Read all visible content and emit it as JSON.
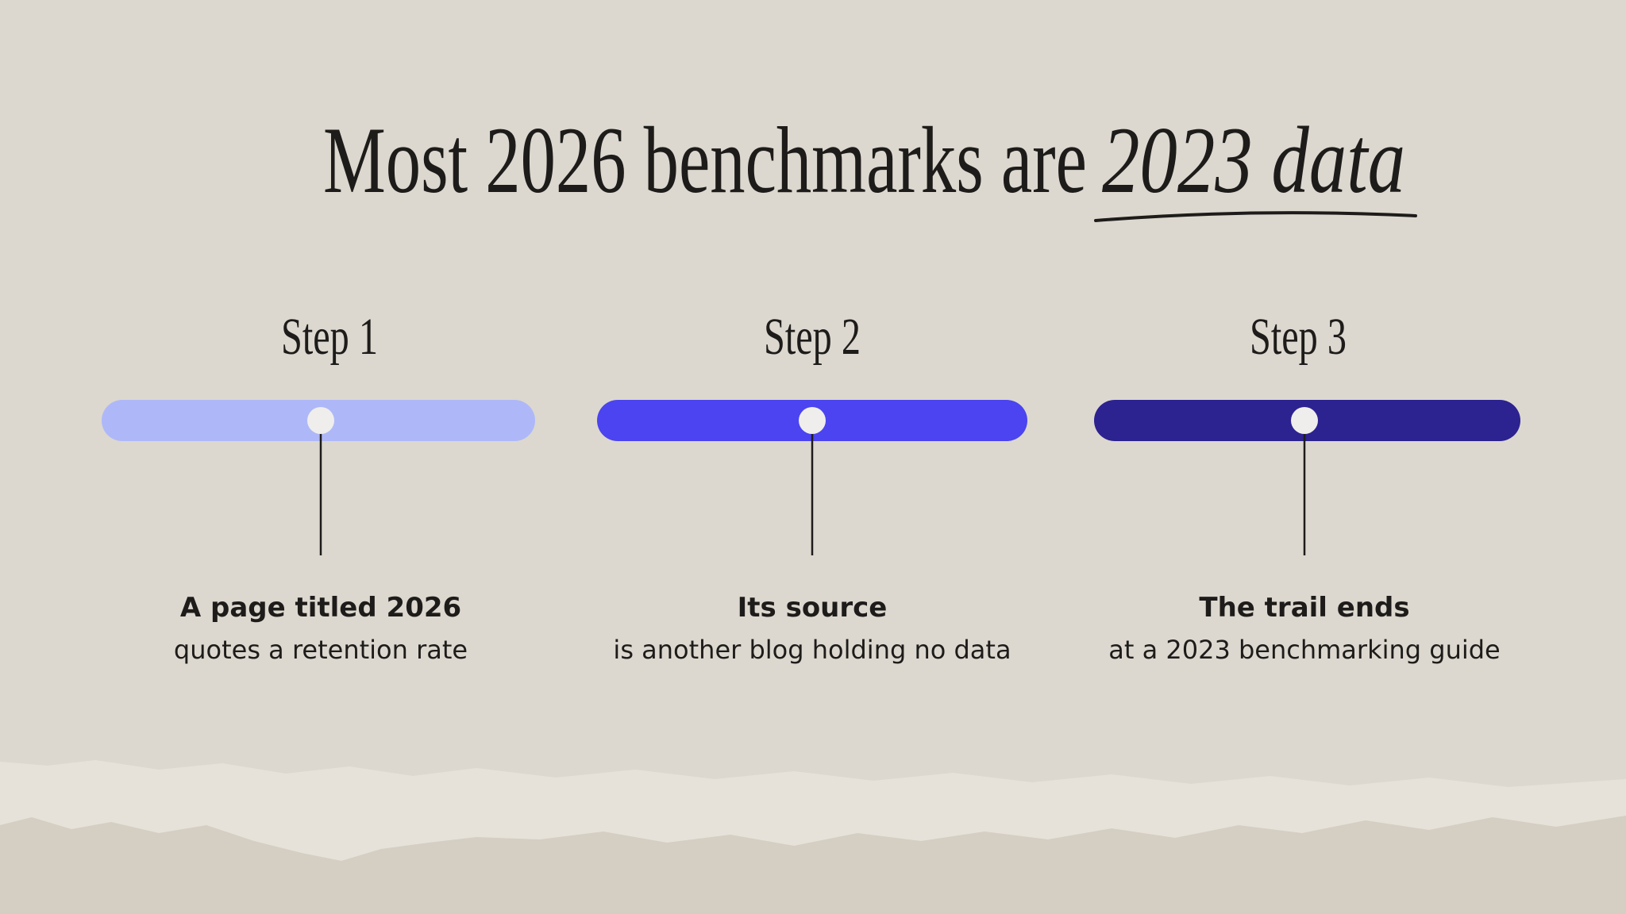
{
  "title": {
    "main": "Most 2026 benchmarks are",
    "emphasis": "2023 data"
  },
  "steps": [
    {
      "label": "Step 1",
      "heading": "A page titled 2026",
      "text": "quotes a retention rate",
      "color": "#aeb8f8"
    },
    {
      "label": "Step 2",
      "heading": "Its source",
      "text": "is another blog holding no data",
      "color": "#4b44f0"
    },
    {
      "label": "Step 3",
      "heading": "The trail ends",
      "text": "at a 2023 benchmarking guide",
      "color": "#2c2290"
    }
  ]
}
